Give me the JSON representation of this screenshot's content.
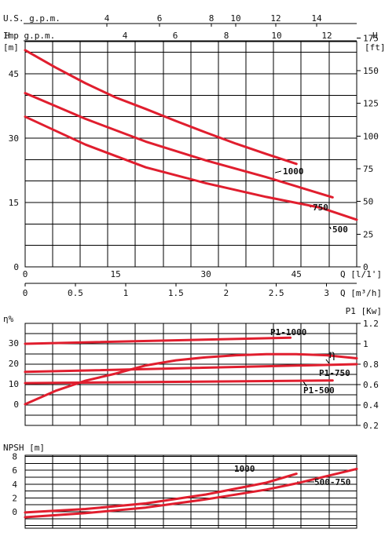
{
  "colors": {
    "curve": "#e01e2e",
    "grid": "#000000"
  },
  "chart_data": [
    {
      "type": "line",
      "name": "head-capacity",
      "xlabel": "Q [l/1']",
      "xlabel_m3h": "Q [m³/h]",
      "ylabel_left_unit": "H",
      "ylabel_left_unit2": "[m]",
      "ylabel_right_unit": "H",
      "ylabel_right_unit2": "[ft]",
      "top_axis_1_label": "U.S.  g.p.m.",
      "top_axis_2_label": "Imp  g.p.m.",
      "xlim": [
        0,
        55
      ],
      "ylim": [
        0,
        52.5
      ],
      "x_ticks": [
        "0",
        "15",
        "30",
        "45"
      ],
      "x_ticks_m3h": [
        "0",
        "0.5",
        "1",
        "1.5",
        "2",
        "2.5",
        "3"
      ],
      "y_ticks_left": [
        "0",
        "15",
        "30",
        "45"
      ],
      "y_ticks_right": [
        "0",
        "25",
        "50",
        "75",
        "100",
        "125",
        "150",
        "175"
      ],
      "top_ticks_usgpm": [
        "4",
        "6",
        "8",
        "10",
        "12",
        "14"
      ],
      "top_ticks_impgpm": [
        "4",
        "6",
        "8",
        "10",
        "12"
      ],
      "grid": true,
      "series": [
        {
          "name": "1000",
          "x": [
            0,
            5,
            10,
            15,
            20,
            25,
            30,
            35,
            40,
            45
          ],
          "y": [
            50.5,
            46.5,
            42.8,
            39.5,
            36.8,
            34.0,
            31.3,
            28.7,
            26.3,
            24.0
          ]
        },
        {
          "name": "750",
          "x": [
            0,
            10,
            20,
            30,
            40,
            51
          ],
          "y": [
            40.5,
            34.5,
            29.2,
            24.8,
            20.9,
            16.2
          ]
        },
        {
          "name": "500",
          "x": [
            0,
            10,
            20,
            30,
            40,
            49,
            55
          ],
          "y": [
            35.0,
            28.5,
            23.2,
            19.5,
            16.3,
            13.8,
            11.0
          ]
        }
      ]
    },
    {
      "type": "line",
      "name": "efficiency-power",
      "ylabel_left": "η%",
      "ylabel_right": "P1 [Kw]",
      "eta_label": "η",
      "xlim": [
        0,
        55
      ],
      "y_ticks_left": [
        "0",
        "10",
        "20",
        "30"
      ],
      "y_ticks_right": [
        "0.2",
        "0.4",
        "0.6",
        "0.8",
        "1",
        "1.2"
      ],
      "grid": true,
      "series": [
        {
          "name": "P1-1000",
          "unit": "Kw",
          "x": [
            0,
            44
          ],
          "y": [
            1.0,
            1.06
          ]
        },
        {
          "name": "η",
          "unit": "%",
          "x": [
            0,
            5,
            10,
            15,
            20,
            25,
            30,
            35,
            40,
            45,
            50,
            55
          ],
          "y": [
            0,
            6.5,
            11.5,
            15.0,
            19.0,
            21.5,
            23.0,
            24.0,
            24.5,
            24.5,
            24.0,
            22.5
          ]
        },
        {
          "name": "P1-750",
          "unit": "Kw",
          "x": [
            0,
            55
          ],
          "y": [
            0.725,
            0.8
          ]
        },
        {
          "name": "P1-500",
          "unit": "Kw",
          "x": [
            0,
            51
          ],
          "y": [
            0.615,
            0.64
          ]
        }
      ]
    },
    {
      "type": "line",
      "name": "npsh",
      "ylabel": "NPSH [m]",
      "xlim": [
        0,
        55
      ],
      "ylim": [
        -1,
        8
      ],
      "y_ticks": [
        "0",
        "2",
        "4",
        "6",
        "8"
      ],
      "grid": true,
      "series": [
        {
          "name": "1000",
          "x": [
            0,
            10,
            20,
            30,
            40,
            45
          ],
          "y": [
            -0.1,
            0.4,
            1.2,
            2.5,
            4.2,
            5.5
          ]
        },
        {
          "name": "500-750",
          "x": [
            0,
            10,
            20,
            30,
            40,
            45,
            55
          ],
          "y": [
            -0.8,
            -0.2,
            0.6,
            1.8,
            3.2,
            4.1,
            6.2
          ]
        }
      ]
    }
  ]
}
